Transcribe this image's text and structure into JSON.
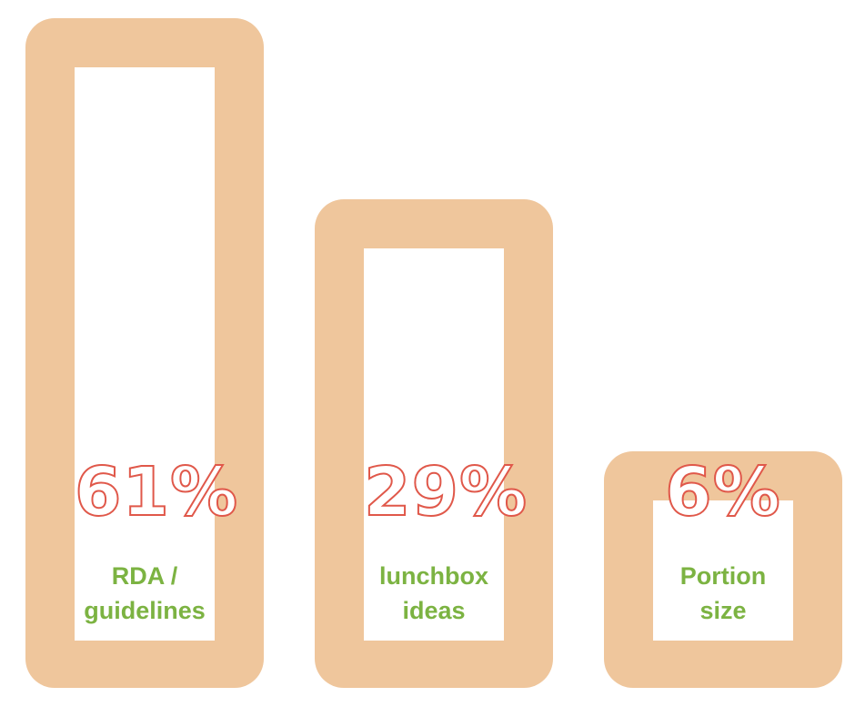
{
  "colors": {
    "frame": "#efc69c",
    "value_outline": "#e0584a",
    "label": "#7cb342"
  },
  "chart_data": {
    "type": "bar",
    "categories": [
      "RDA /\nguidelines",
      "lunchbox\nideas",
      "Portion\nsize"
    ],
    "values": [
      61,
      29,
      6
    ],
    "value_labels": [
      "61%",
      "29%",
      "6%"
    ],
    "title": "",
    "xlabel": "",
    "ylabel": "",
    "grid": false,
    "legend": "none"
  }
}
